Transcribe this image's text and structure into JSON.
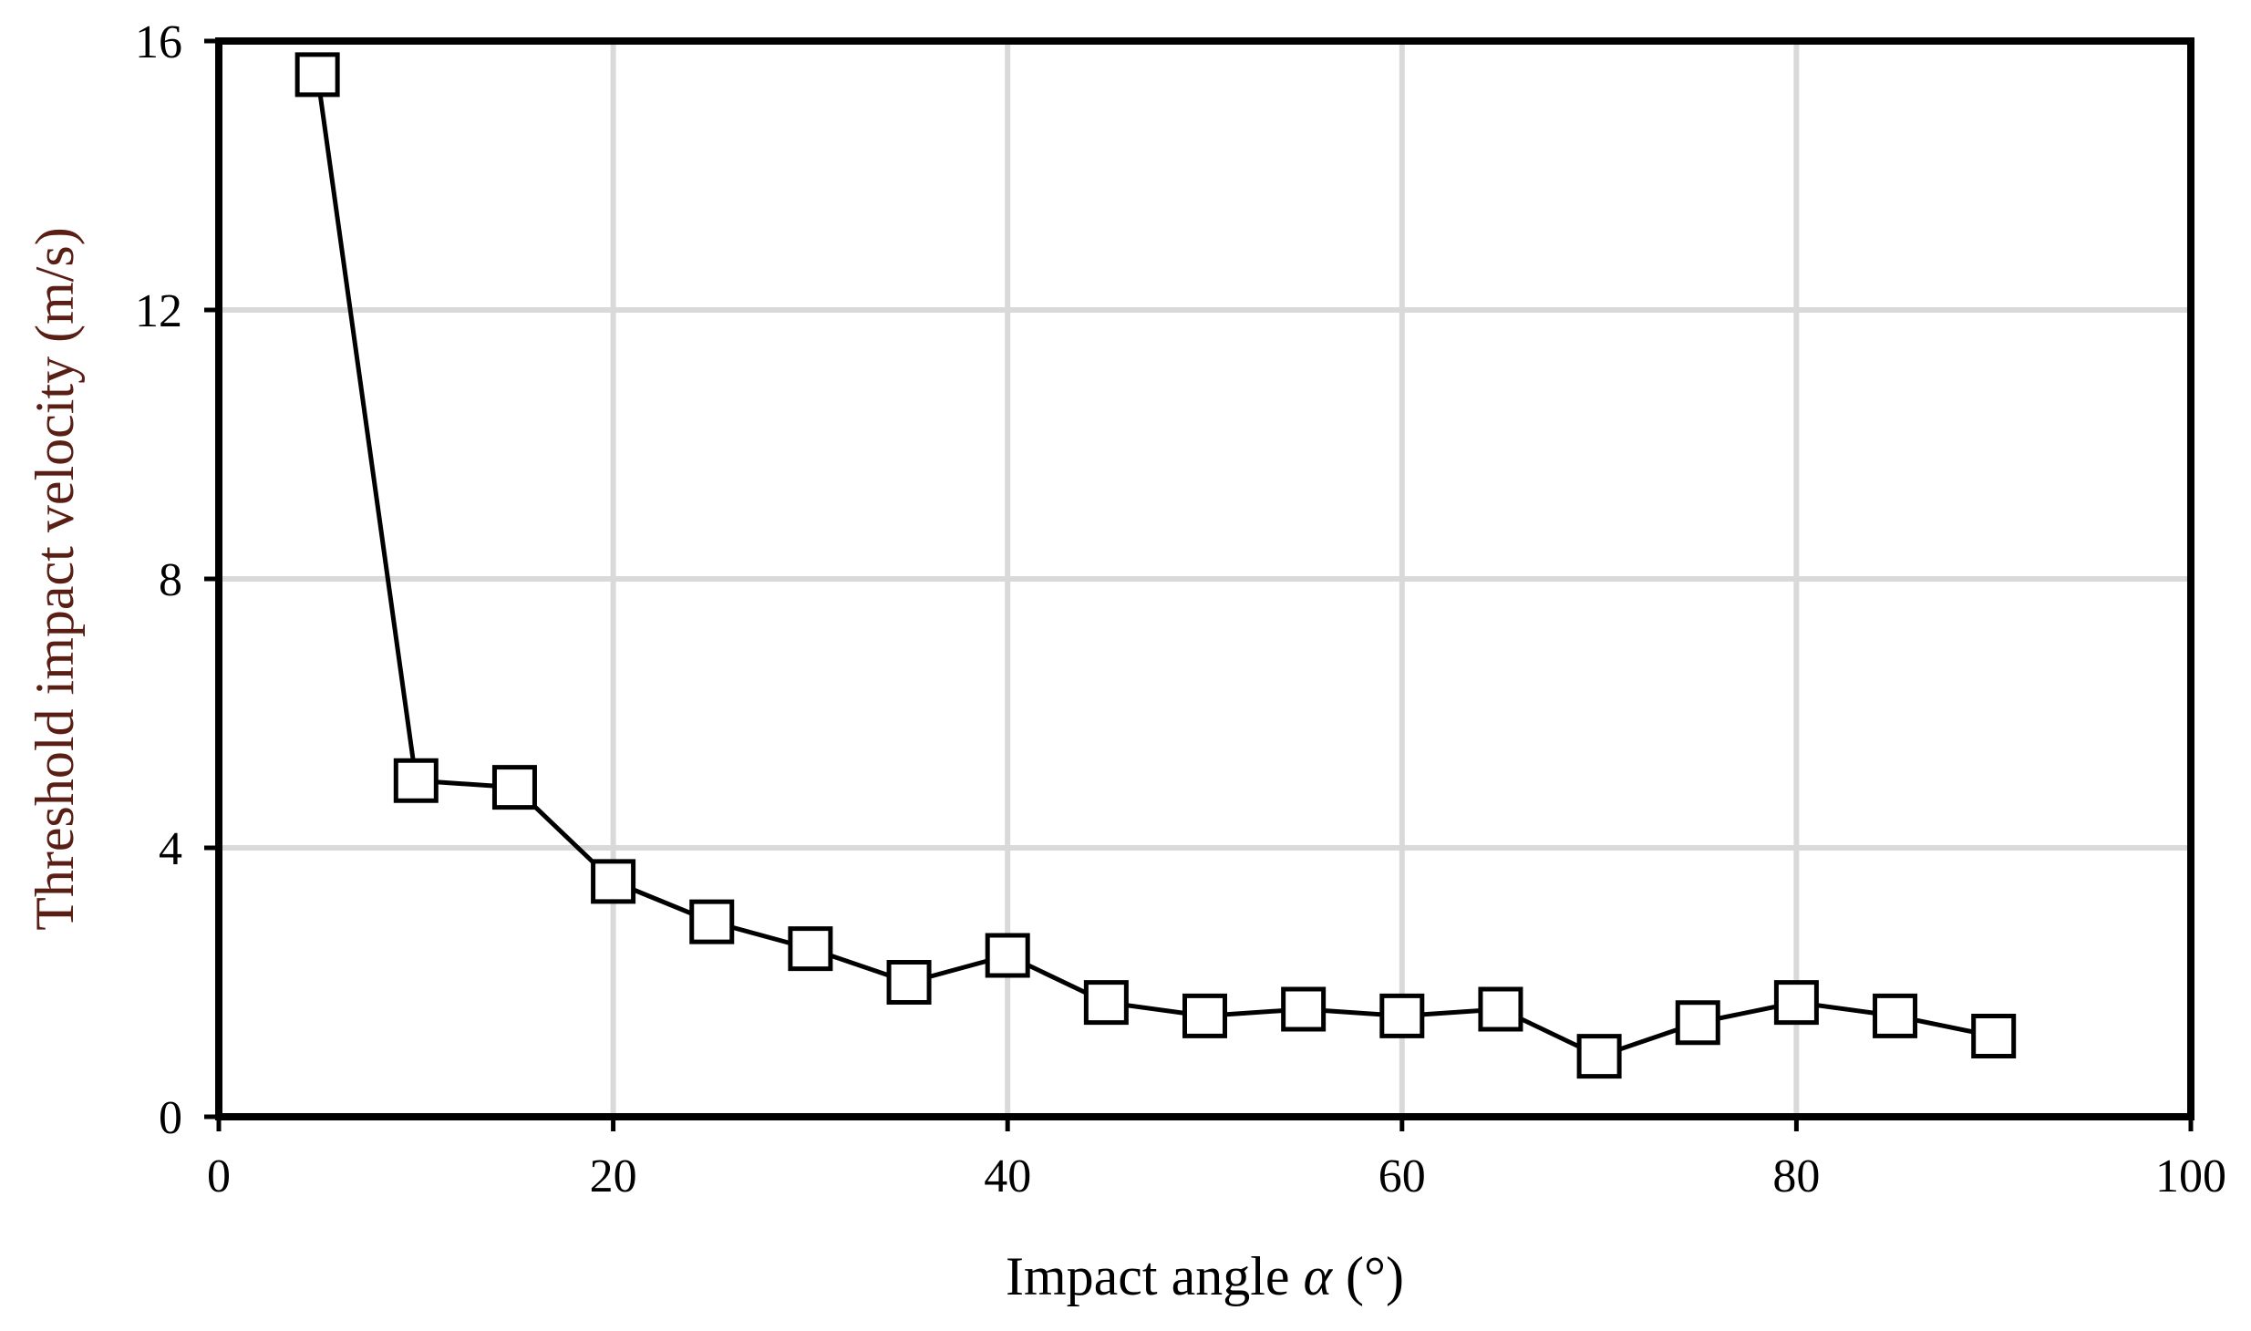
{
  "chart_data": {
    "type": "line",
    "title": "",
    "xlabel_prefix": "Impact angle ",
    "xlabel_symbol": "α",
    "xlabel_suffix": " (°)",
    "ylabel": "Threshold impact velocity (m/s)",
    "xlim": [
      0,
      100
    ],
    "ylim": [
      0,
      16
    ],
    "xticks": [
      0,
      20,
      40,
      60,
      80,
      100
    ],
    "yticks": [
      0,
      4,
      8,
      12,
      16
    ],
    "grid": true,
    "series": [
      {
        "name": "Threshold impact velocity",
        "marker": "open-square",
        "x": [
          5,
          10,
          15,
          20,
          25,
          30,
          35,
          40,
          45,
          50,
          55,
          60,
          65,
          70,
          75,
          80,
          85,
          90
        ],
        "y": [
          15.5,
          5.0,
          4.9,
          3.5,
          2.9,
          2.5,
          2.0,
          2.4,
          1.7,
          1.5,
          1.6,
          1.5,
          1.6,
          0.9,
          1.4,
          1.7,
          1.5,
          1.2
        ]
      }
    ],
    "colors": {
      "line": "#000000",
      "grid": "#d9d9d9",
      "axis": "#000000",
      "ylabel": "#5a1f14",
      "xlabel": "#000000"
    }
  }
}
